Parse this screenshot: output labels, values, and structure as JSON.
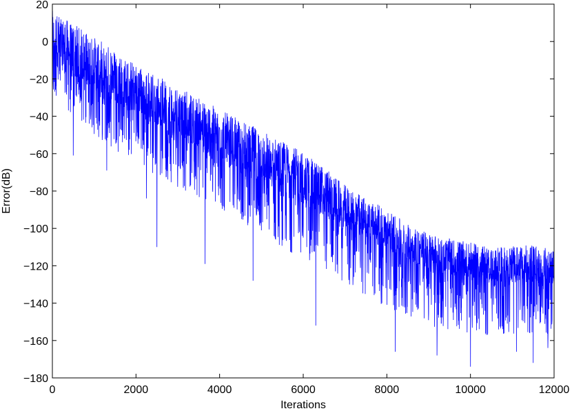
{
  "chart_data": {
    "type": "line",
    "title": "",
    "xlabel": "Iterations",
    "ylabel": "Error(dB)",
    "xlim": [
      0,
      12000
    ],
    "ylim": [
      -180,
      20
    ],
    "x_ticks": [
      0,
      2000,
      4000,
      6000,
      8000,
      10000,
      12000
    ],
    "x_tick_labels": [
      "0",
      "2000",
      "4000",
      "6000",
      "8000",
      "10000",
      "12000"
    ],
    "y_ticks": [
      20,
      0,
      -20,
      -40,
      -60,
      -80,
      -100,
      -120,
      -140,
      -160,
      -180
    ],
    "y_tick_labels": [
      "20",
      "0",
      "−20",
      "−40",
      "−60",
      "−80",
      "−100",
      "−120",
      "−140",
      "−160",
      "−180"
    ],
    "grid": false,
    "legend": "none",
    "series": [
      {
        "color": "#0000ff",
        "x": [
          0,
          500,
          1000,
          1500,
          2000,
          2500,
          3000,
          3500,
          4000,
          4500,
          5000,
          5500,
          6000,
          6500,
          7000,
          7500,
          8000,
          8500,
          9000,
          9500,
          10000,
          10500,
          11000,
          11500,
          12000
        ],
        "upper_envelope": [
          19,
          12,
          5,
          -2,
          -10,
          -16,
          -22,
          -28,
          -34,
          -40,
          -45,
          -51,
          -57,
          -65,
          -75,
          -82,
          -88,
          -96,
          -101,
          -104,
          -106,
          -109,
          -108,
          -107,
          -110
        ],
        "typical": [
          -5,
          -12,
          -19,
          -26,
          -32,
          -38,
          -44,
          -50,
          -56,
          -62,
          -68,
          -74,
          -80,
          -87,
          -94,
          -100,
          -106,
          -112,
          -117,
          -120,
          -122,
          -124,
          -124,
          -124,
          -125
        ],
        "lower_envelope": [
          -30,
          -40,
          -50,
          -58,
          -65,
          -72,
          -78,
          -84,
          -90,
          -96,
          -103,
          -110,
          -117,
          -124,
          -131,
          -137,
          -143,
          -148,
          -152,
          -155,
          -157,
          -158,
          -158,
          -158,
          -158
        ],
        "dips": [
          [
            500,
            -61
          ],
          [
            1300,
            -69
          ],
          [
            2250,
            -84
          ],
          [
            2500,
            -110
          ],
          [
            3650,
            -119
          ],
          [
            4800,
            -128
          ],
          [
            6300,
            -152
          ],
          [
            8200,
            -166
          ],
          [
            9200,
            -168
          ],
          [
            10000,
            -174
          ],
          [
            11100,
            -166
          ],
          [
            11500,
            -172
          ],
          [
            11850,
            -164
          ]
        ]
      }
    ]
  }
}
